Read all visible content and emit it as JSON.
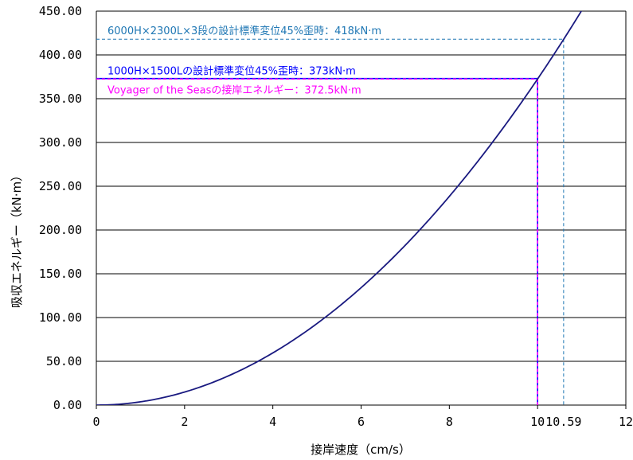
{
  "chart_data": {
    "type": "line",
    "xlabel": "接岸速度（cm/s）",
    "ylabel": "吸収エネルギー（kN·m）",
    "xlim": [
      0,
      12
    ],
    "ylim": [
      0,
      450
    ],
    "xticks": [
      0,
      2,
      4,
      6,
      8,
      10,
      12
    ],
    "yticks": [
      0,
      50,
      100,
      150,
      200,
      250,
      300,
      350,
      400,
      450
    ],
    "ytick_labels": [
      "0.00",
      "50.00",
      "100.00",
      "150.00",
      "200.00",
      "250.00",
      "300.00",
      "350.00",
      "400.00",
      "450.00"
    ],
    "grid": {
      "horizontal": true,
      "vertical": false
    },
    "series": [
      {
        "color": "#1a1a80",
        "x": [
          0,
          1,
          2,
          3,
          4,
          5,
          6,
          7,
          8,
          9,
          10,
          10.59,
          11
        ],
        "y": [
          0,
          3.7,
          14.9,
          33.5,
          59.6,
          93.1,
          134.1,
          182.5,
          238.4,
          301.7,
          372.5,
          418,
          450.7
        ]
      }
    ],
    "reference_lines": [
      {
        "label": "6000H×2300L×3段の設計標準変位45%歪時：418kN·m",
        "x": 10.59,
        "y": 418,
        "x_label": "10.59",
        "color": "#1f77b4",
        "x_label_color": "#1f77b4",
        "style": "dashed"
      },
      {
        "label": "1000H×1500Lの設計標準変位45%歪時：373kN·m",
        "x": 10,
        "y": 373,
        "color": "#0000ff",
        "style": "solid"
      },
      {
        "label": "Voyager of the Seasの接岸エネルギー：372.5kN·m",
        "x": 10,
        "y": 372.5,
        "x_label": "10",
        "color": "#ff00ff",
        "x_label_color": "#ff0000",
        "style": "dashed"
      }
    ]
  }
}
